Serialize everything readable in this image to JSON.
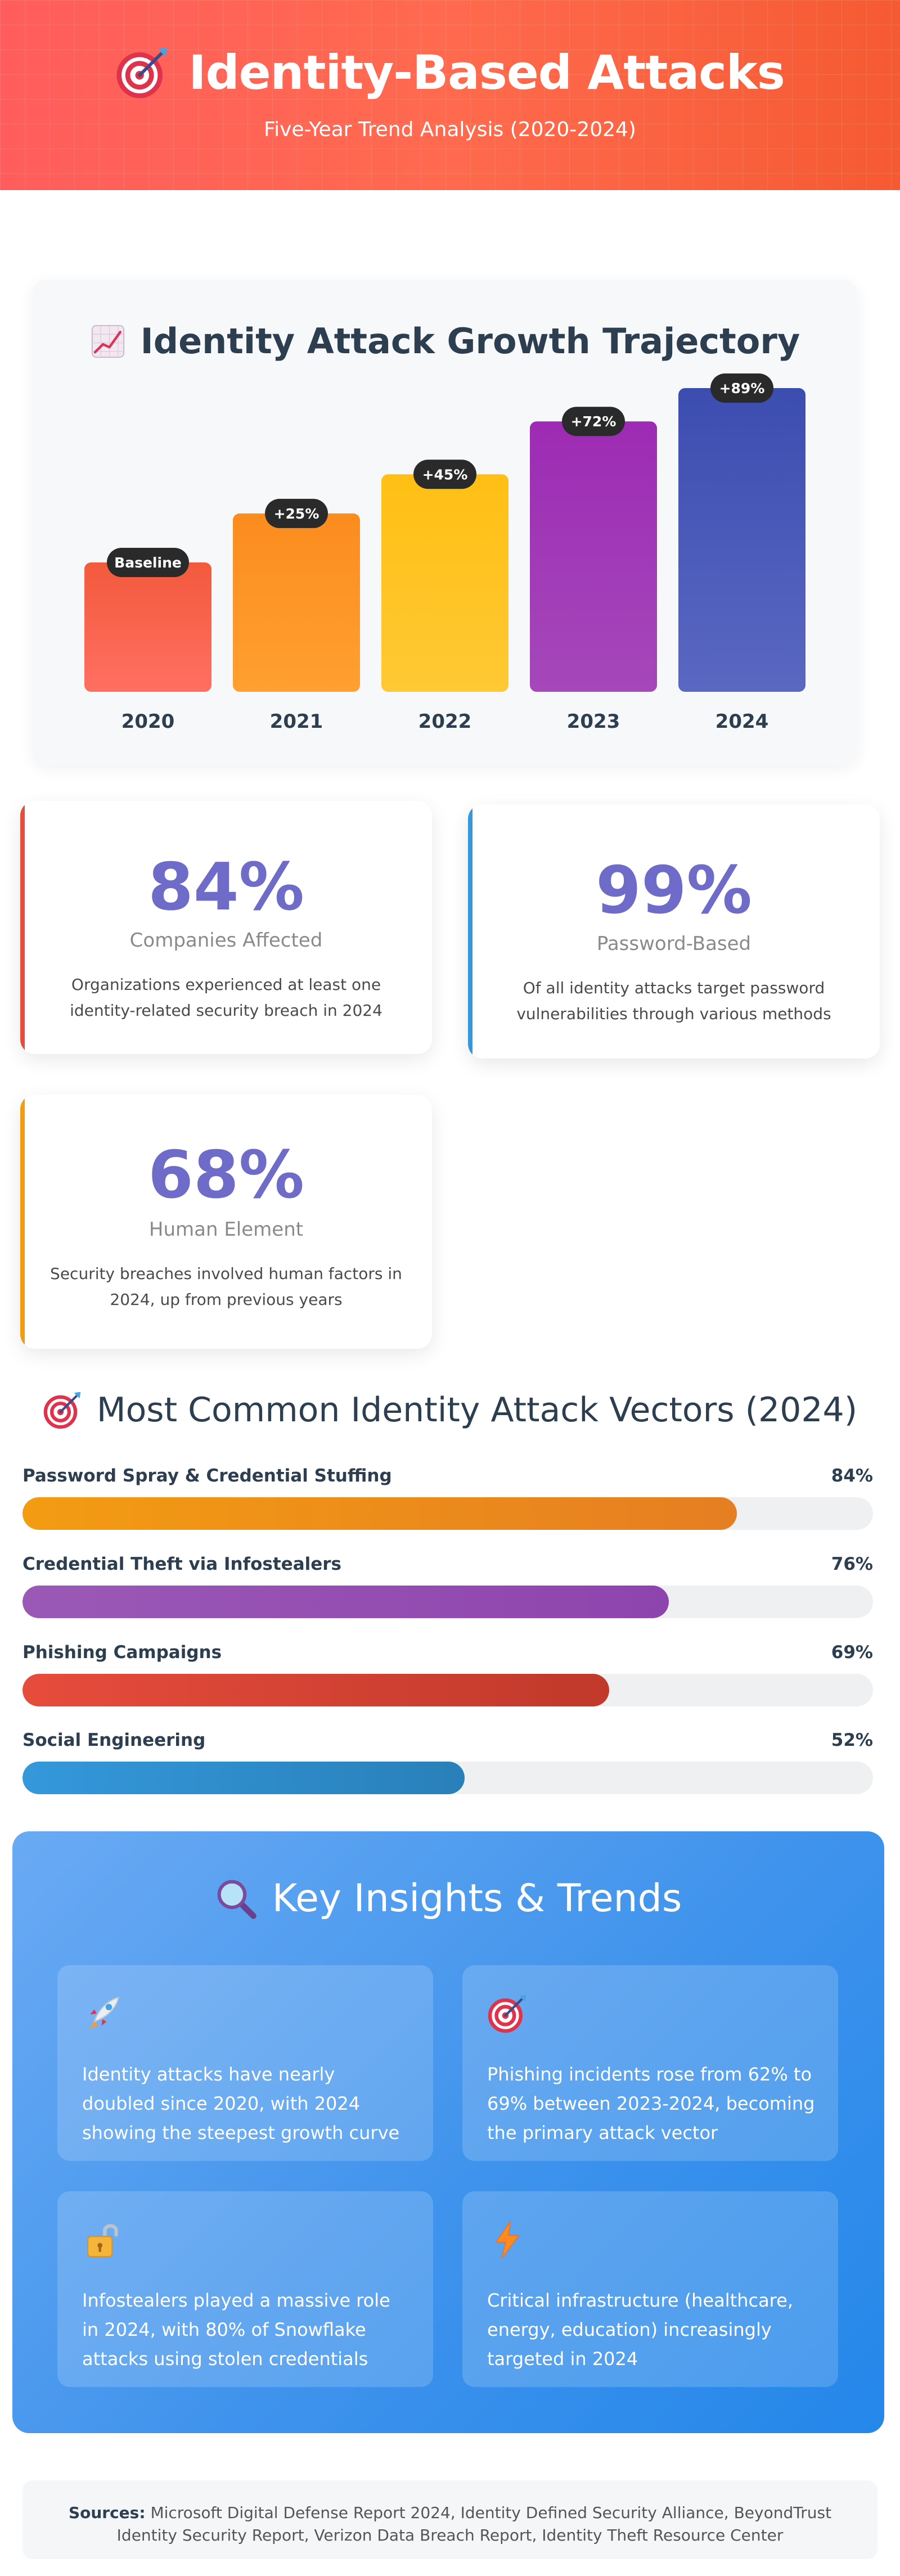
{
  "header": {
    "title": "Identity-Based Attacks",
    "subtitle": "Five-Year Trend Analysis (2020-2024)",
    "icon": "target-icon"
  },
  "chart": {
    "title": "Identity Attack Growth Trajectory",
    "icon": "chart-increasing-icon"
  },
  "chart_data": {
    "type": "bar",
    "title": "Identity Attack Growth Trajectory",
    "categories": [
      "2020",
      "2021",
      "2022",
      "2023",
      "2024"
    ],
    "values": [
      0,
      25,
      45,
      72,
      89
    ],
    "data_labels": [
      "Baseline",
      "+25%",
      "+45%",
      "+72%",
      "+89%"
    ],
    "colors": [
      [
        "#f35a3d",
        "#ff6f61"
      ],
      [
        "#fb8c1e",
        "#ffa030"
      ],
      [
        "#ffbf14",
        "#ffc934"
      ],
      [
        "#9d2bb4",
        "#a548ba"
      ],
      [
        "#3c4db0",
        "#5a68c2"
      ]
    ],
    "grid": false,
    "legend": "none"
  },
  "stats": [
    {
      "value": "84%",
      "label": "Companies Affected",
      "desc": "Organizations experienced at least one identity-related security breach in 2024",
      "accent": "#e74c3c"
    },
    {
      "value": "99%",
      "label": "Password-Based",
      "desc": "Of all identity attacks target password vulnerabilities through various methods",
      "accent": "#3498db"
    },
    {
      "value": "68%",
      "label": "Human Element",
      "desc": "Security breaches involved human factors in 2024, up from previous years",
      "accent": "#f39c12"
    }
  ],
  "vectors": {
    "title": "Most Common Identity Attack Vectors (2024)",
    "icon": "target-icon",
    "items": [
      {
        "name": "Password Spray & Credential Stuffing",
        "pct_label": "84%",
        "pct": 84,
        "color_a": "#f39c12",
        "color_b": "#e67e22"
      },
      {
        "name": "Credential Theft via Infostealers",
        "pct_label": "76%",
        "pct": 76,
        "color_a": "#9b59b6",
        "color_b": "#8e44ad"
      },
      {
        "name": "Phishing Campaigns",
        "pct_label": "69%",
        "pct": 69,
        "color_a": "#e74c3c",
        "color_b": "#c0392b"
      },
      {
        "name": "Social Engineering",
        "pct_label": "52%",
        "pct": 52,
        "color_a": "#3498db",
        "color_b": "#2980b9"
      }
    ]
  },
  "insights": {
    "title": "Key Insights & Trends",
    "icon": "magnifying-glass-icon",
    "items": [
      {
        "icon": "rocket-icon",
        "text": "Identity attacks have nearly doubled since 2020, with 2024 showing the steepest growth curve"
      },
      {
        "icon": "target-icon",
        "text": "Phishing incidents rose from 62% to 69% between 2023-2024, becoming the primary attack vector"
      },
      {
        "icon": "unlocked-padlock-icon",
        "text": "Infostealers played a massive role in 2024, with 80% of Snowflake attacks using stolen credentials"
      },
      {
        "icon": "lightning-icon",
        "text": "Critical infrastructure (healthcare, energy, education) increasingly targeted in 2024"
      }
    ]
  },
  "footer": {
    "label": "Sources:",
    "text": "Microsoft Digital Defense Report 2024, Identity Defined Security Alliance, BeyondTrust Identity Security Report, Verizon Data Breach Report, Identity Theft Resource Center"
  }
}
